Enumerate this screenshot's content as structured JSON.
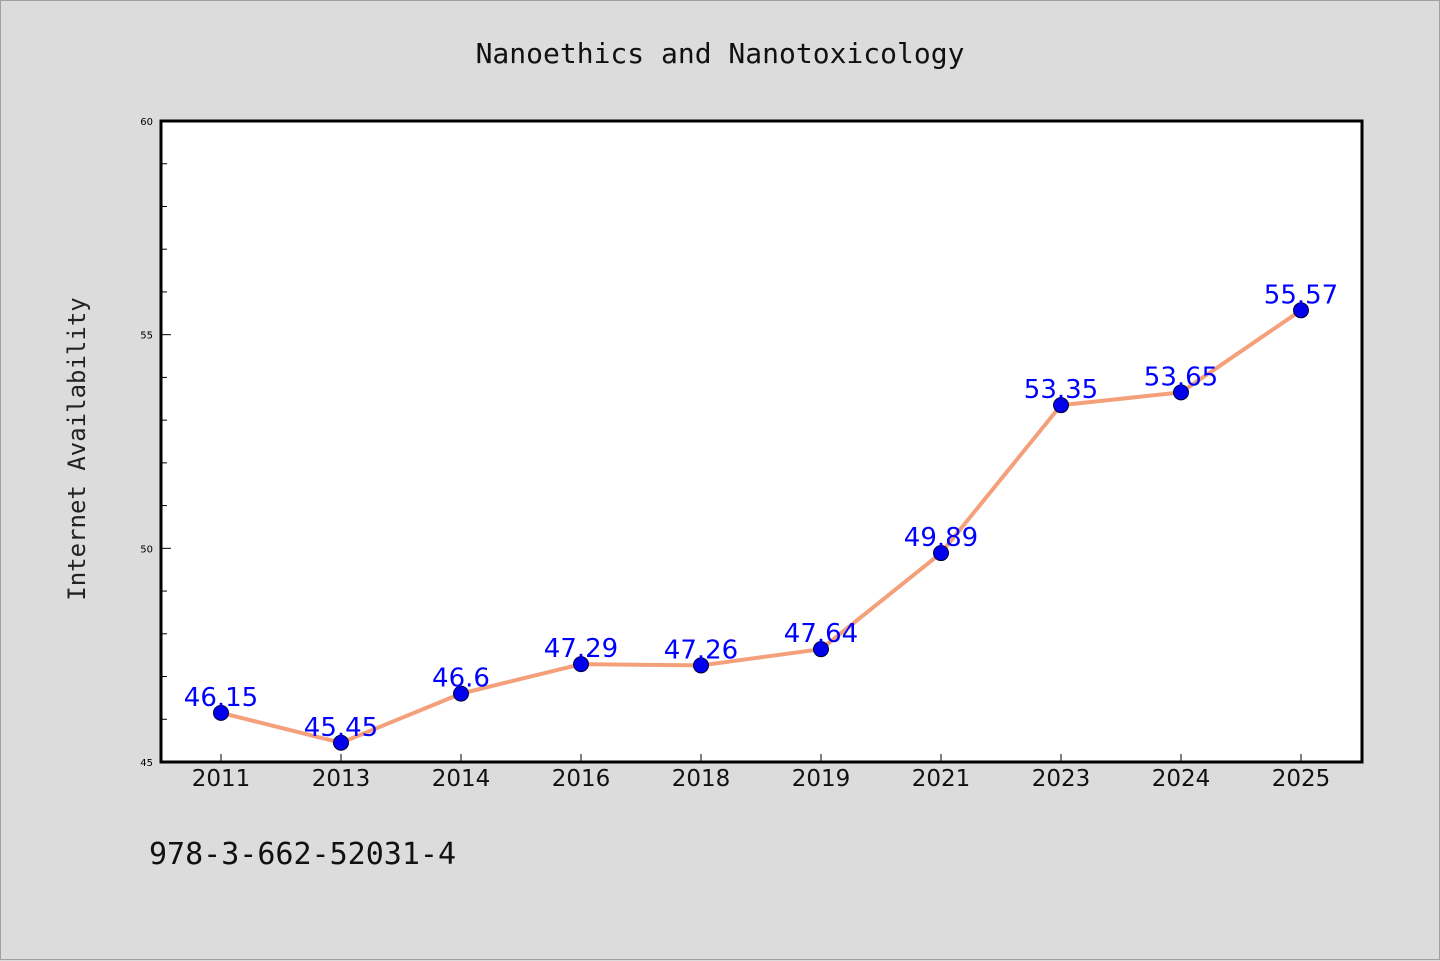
{
  "chart_data": {
    "type": "line",
    "title": "Nanoethics and Nanotoxicology",
    "xlabel": "",
    "ylabel": "Internet Availability",
    "categories": [
      "2011",
      "2013",
      "2014",
      "2016",
      "2018",
      "2019",
      "2021",
      "2023",
      "2024",
      "2025"
    ],
    "series": [
      {
        "values": [
          46.15,
          45.45,
          46.6,
          47.29,
          47.26,
          47.64,
          49.89,
          53.35,
          53.65,
          55.57
        ],
        "labels": [
          "46.15",
          "45.45",
          "46.6",
          "47.29",
          "47.26",
          "47.64",
          "49.89",
          "53.35",
          "53.65",
          "55.57"
        ],
        "line_color": "#f4a07a",
        "marker_color": "#0000ee",
        "label_color": "#0000ff"
      }
    ],
    "ylim": [
      45,
      60
    ],
    "yticks": [
      45,
      50,
      55,
      60
    ],
    "ytick_labels": [
      "45",
      "50",
      "55",
      "60"
    ],
    "minor_ytick_step": 1,
    "grid": false,
    "legend": "none"
  },
  "footnote": "978-3-662-52031-4",
  "colors": {
    "background": "#dcdcdc",
    "plot_background": "#ffffff",
    "axis": "#000000"
  }
}
